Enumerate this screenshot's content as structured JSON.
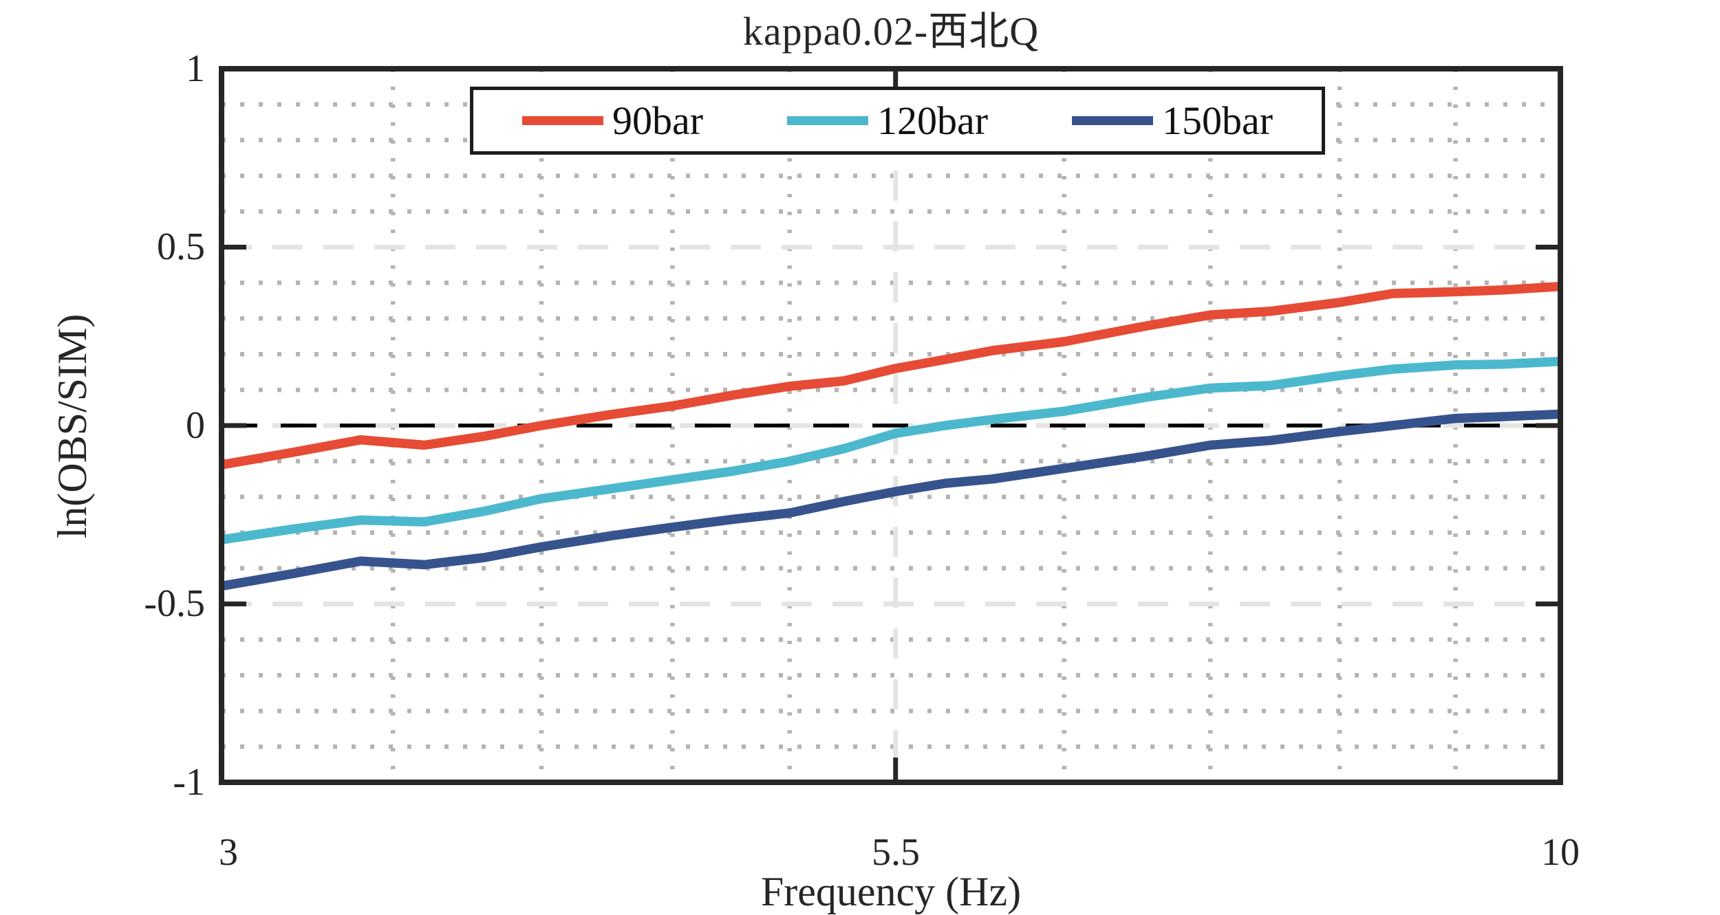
{
  "title": "kappa0.02-西北Q",
  "axes": {
    "x_label": "Frequency (Hz)",
    "y_label": "ln(OBS/SIM)",
    "x_tick_labels": [
      "3",
      "5.5",
      "10"
    ],
    "y_tick_labels": [
      "1",
      "0.5",
      "0",
      "-0.5",
      "-1"
    ]
  },
  "legend": {
    "items": [
      {
        "label": "90bar",
        "color": "#e64b35"
      },
      {
        "label": "120bar",
        "color": "#4cb8ce"
      },
      {
        "label": "150bar",
        "color": "#36538e"
      }
    ]
  },
  "colors": {
    "axis": "#262626",
    "minor_grid": "#b4b4b4",
    "major_grid": "#e4e4e4",
    "zero_line": "#000000"
  },
  "chart_data": {
    "type": "line",
    "title": "kappa0.02-西北Q",
    "xlabel": "Frequency (Hz)",
    "ylabel": "ln(OBS/SIM)",
    "x_scale": "log",
    "xlim": [
      3,
      10
    ],
    "ylim": [
      -1,
      1
    ],
    "x_ticks": [
      3,
      5.5,
      10
    ],
    "y_ticks": [
      1,
      0.5,
      0,
      -0.5,
      -1
    ],
    "grid": "on",
    "legend_position": "top-center-inside",
    "reference_line_y": 0,
    "minor_grid_x": [
      3.5,
      4.0,
      4.5,
      5.0,
      6.4,
      7.3,
      8.2,
      9.1
    ],
    "major_grid_x": [
      5.5
    ],
    "major_grid_y": [
      0.5,
      -0.5
    ],
    "minor_grid_y_step": 0.1,
    "x": [
      3.0,
      3.2,
      3.4,
      3.6,
      3.8,
      4.0,
      4.25,
      4.5,
      4.75,
      5.0,
      5.25,
      5.5,
      5.75,
      6.0,
      6.4,
      6.9,
      7.3,
      7.7,
      8.2,
      8.6,
      9.1,
      9.5,
      10.0
    ],
    "series": [
      {
        "name": "90bar",
        "color": "#e64b35",
        "values": [
          -0.11,
          -0.075,
          -0.04,
          -0.055,
          -0.03,
          0.0,
          0.03,
          0.055,
          0.085,
          0.11,
          0.125,
          0.16,
          0.185,
          0.21,
          0.235,
          0.28,
          0.31,
          0.32,
          0.345,
          0.37,
          0.375,
          0.38,
          0.39
        ]
      },
      {
        "name": "120bar",
        "color": "#4cb8ce",
        "values": [
          -0.32,
          -0.29,
          -0.265,
          -0.27,
          -0.24,
          -0.205,
          -0.178,
          -0.152,
          -0.128,
          -0.1,
          -0.065,
          -0.022,
          0.0,
          0.017,
          0.04,
          0.08,
          0.105,
          0.112,
          0.14,
          0.158,
          0.17,
          0.172,
          0.18
        ]
      },
      {
        "name": "150bar",
        "color": "#36538e",
        "values": [
          -0.45,
          -0.415,
          -0.38,
          -0.39,
          -0.37,
          -0.34,
          -0.31,
          -0.285,
          -0.263,
          -0.245,
          -0.213,
          -0.185,
          -0.162,
          -0.15,
          -0.12,
          -0.085,
          -0.055,
          -0.042,
          -0.017,
          0.0,
          0.02,
          0.025,
          0.032
        ]
      }
    ]
  }
}
